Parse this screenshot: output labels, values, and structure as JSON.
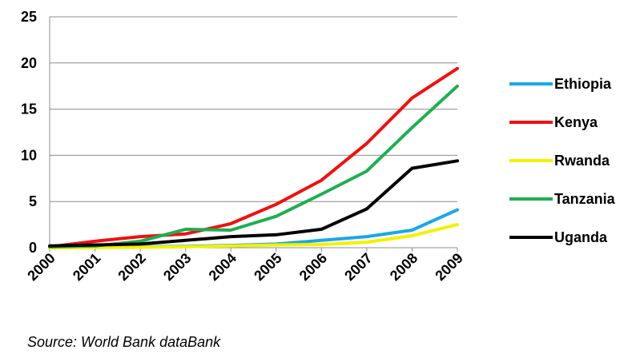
{
  "chart_data": {
    "type": "line",
    "title": "",
    "xlabel": "",
    "ylabel": "",
    "categories": [
      "2000",
      "2001",
      "2002",
      "2003",
      "2004",
      "2005",
      "2006",
      "2007",
      "2008",
      "2009"
    ],
    "ylim": [
      0,
      25
    ],
    "yticks": [
      0,
      5,
      10,
      15,
      20,
      25
    ],
    "grid": "horizontal",
    "legend_position": "right",
    "series": [
      {
        "name": "Ethiopia",
        "color": "#1aa7e8",
        "values": [
          0.0,
          0.05,
          0.1,
          0.15,
          0.25,
          0.4,
          0.8,
          1.2,
          1.9,
          4.1
        ]
      },
      {
        "name": "Kenya",
        "color": "#ee1111",
        "values": [
          0.1,
          0.7,
          1.2,
          1.5,
          2.6,
          4.7,
          7.3,
          11.3,
          16.2,
          19.4
        ]
      },
      {
        "name": "Rwanda",
        "color": "#f2f200",
        "values": [
          0.0,
          0.03,
          0.05,
          0.1,
          0.2,
          0.3,
          0.35,
          0.6,
          1.3,
          2.5
        ]
      },
      {
        "name": "Tanzania",
        "color": "#1fae50",
        "values": [
          0.1,
          0.2,
          0.7,
          2.0,
          1.9,
          3.4,
          5.8,
          8.3,
          13.0,
          17.5
        ]
      },
      {
        "name": "Uganda",
        "color": "#000000",
        "values": [
          0.2,
          0.3,
          0.4,
          0.8,
          1.2,
          1.4,
          2.0,
          4.2,
          8.6,
          9.4
        ]
      }
    ]
  },
  "source_text": "Source: World Bank dataBank"
}
